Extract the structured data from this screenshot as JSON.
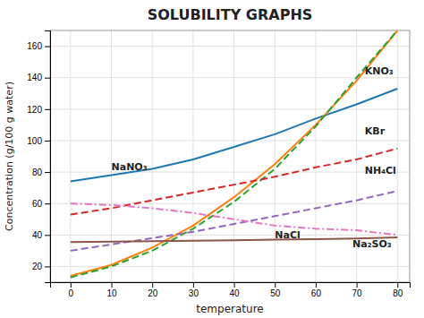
{
  "chart_data": {
    "type": "line",
    "title": "SOLUBILITY GRAPHS",
    "xlabel": "temperature",
    "ylabel": "Concentration (g/100 g water)",
    "x": [
      0,
      10,
      20,
      30,
      40,
      50,
      60,
      70,
      80
    ],
    "series": [
      {
        "values": [
          74,
          78,
          82,
          88,
          96,
          104,
          114,
          123,
          133
        ],
        "line_style": "solid"
      },
      {
        "values": [
          14,
          21,
          32,
          46,
          64,
          85,
          110,
          138,
          170
        ],
        "line_style": "solid"
      },
      {
        "values": [
          13,
          20,
          30,
          44,
          61,
          82,
          109,
          140,
          170
        ],
        "line_style": "dashed"
      },
      {
        "values": [
          53,
          57,
          62,
          67,
          72,
          77,
          83,
          88,
          95
        ],
        "line_style": "dashed"
      },
      {
        "values": [
          30,
          34,
          38,
          42,
          47,
          52,
          57,
          62,
          68
        ],
        "line_style": "dashed"
      },
      {
        "values": [
          35.5,
          35.7,
          36.0,
          36.3,
          36.6,
          37.0,
          37.3,
          37.8,
          38.4
        ],
        "line_style": "solid"
      },
      {
        "values": [
          60,
          59,
          57,
          54,
          50,
          46,
          44,
          43,
          40
        ],
        "line_style": "dashdot"
      }
    ],
    "annotations": [
      {
        "text": "KNO₃",
        "x": 72,
        "y": 142
      },
      {
        "text": "KBr",
        "x": 72,
        "y": 104
      },
      {
        "text": "NaNO₃",
        "x": 10,
        "y": 81
      },
      {
        "text": "NaCl",
        "x": 50,
        "y": 38
      },
      {
        "text": "NH₄Cl",
        "x": 72,
        "y": 79
      },
      {
        "text": "Na₂SO₃",
        "x": 69,
        "y": 32
      }
    ],
    "xlim": [
      -5,
      83
    ],
    "ylim": [
      10,
      170
    ],
    "xticks": [
      0,
      10,
      20,
      30,
      40,
      50,
      60,
      70,
      80
    ],
    "yticks": [
      20,
      40,
      60,
      80,
      100,
      120,
      140,
      160
    ],
    "grid": true
  }
}
